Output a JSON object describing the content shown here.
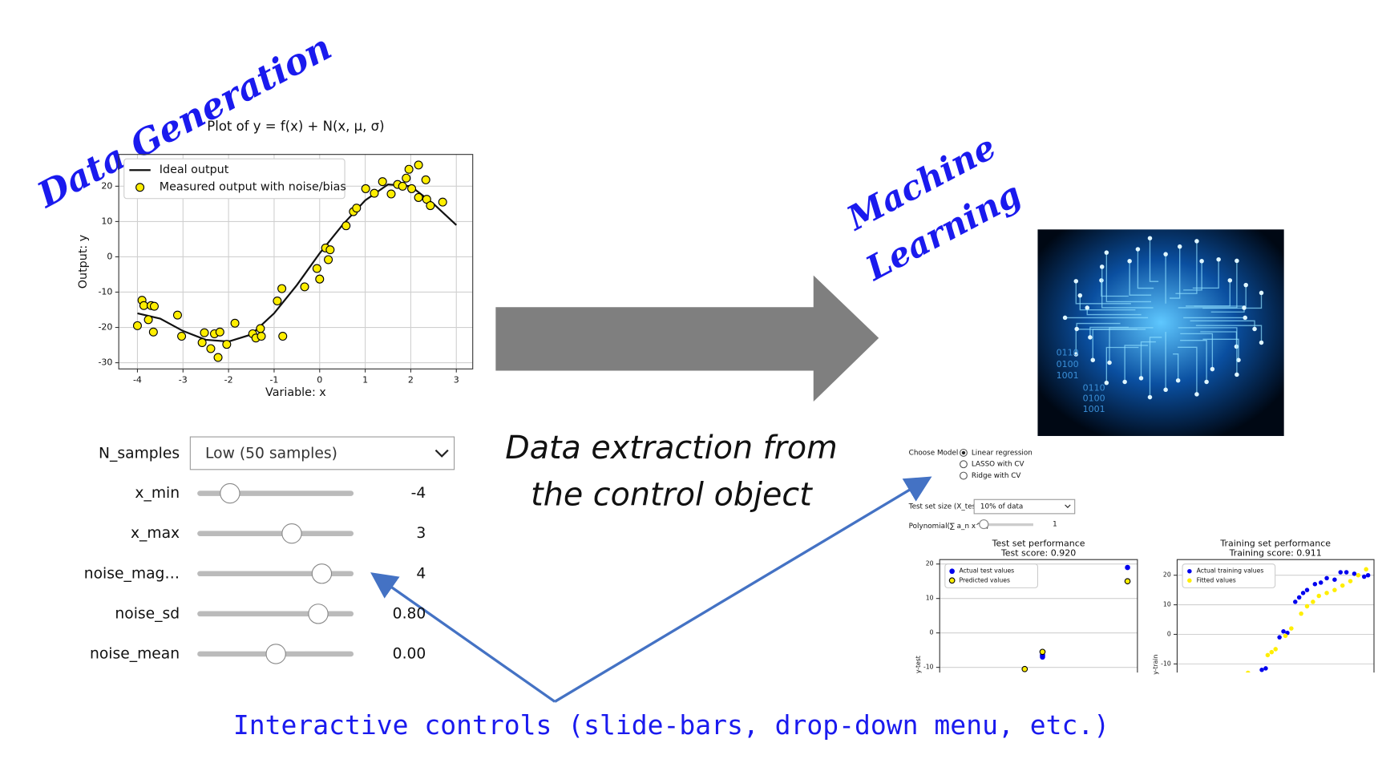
{
  "headings": {
    "data_generation": "Data Generation",
    "machine_learning": [
      "Machine",
      "Learning"
    ],
    "extraction": [
      "Data extraction from",
      "the control object"
    ],
    "interactive": "Interactive controls (slide-bars, drop-down menu, etc.)"
  },
  "controls": {
    "dropdown": {
      "label": "N_samples",
      "value": "Low (50 samples)"
    },
    "sliders": [
      {
        "label": "x_min",
        "value": "-4"
      },
      {
        "label": "x_max",
        "value": "3"
      },
      {
        "label": "noise_mag…",
        "value": "4"
      },
      {
        "label": "noise_sd",
        "value": "0.80"
      },
      {
        "label": "noise_mean",
        "value": "0.00"
      }
    ]
  },
  "ml_controls": {
    "model_label": "Choose Model",
    "models": [
      "Linear regression",
      "LASSO with CV",
      "Ridge with CV"
    ],
    "test_size_label": "Test set size (X_test)",
    "test_size_value": "10% of data",
    "poly_label": "Polynomial(∑ a_n x^n)",
    "poly_value": "1"
  },
  "brain_image": {
    "text": [
      "0110",
      "0100",
      "1001"
    ]
  },
  "chart_data": [
    {
      "type": "scatter",
      "title": "Plot of y = f(x) + N(x, μ, σ)",
      "x_label": "Variable: x",
      "y_label": "Output: y",
      "xlim": [
        -4.41,
        3.36
      ],
      "ylim": [
        -31.75,
        29
      ],
      "xticks": [
        -4,
        -3,
        -2,
        -1,
        0,
        1,
        2,
        3
      ],
      "yticks": [
        -30,
        -20,
        -10,
        0,
        10,
        20
      ],
      "grid": true,
      "legend": "upper left",
      "series": [
        {
          "name": "Ideal output",
          "type": "line",
          "color": "#111111",
          "x": [
            -4,
            -3.5,
            -3,
            -2.5,
            -2,
            -1.5,
            -1,
            -0.5,
            0,
            0.5,
            1,
            1.5,
            2,
            2.5,
            3
          ],
          "values": [
            -16,
            -17.5,
            -21,
            -23.5,
            -24,
            -22,
            -16,
            -8,
            1,
            9,
            16,
            20.5,
            20,
            15,
            9
          ]
        },
        {
          "name": "Measured output with noise/bias",
          "type": "scatter",
          "color": "#ffee00",
          "edgecolor": "#000000",
          "x": [
            -4,
            -3.9,
            -3.86,
            -3.76,
            -3.7,
            -3.63,
            -3.65,
            -3.12,
            -3.03,
            -2.58,
            -2.53,
            -2.39,
            -2.31,
            -2.23,
            -2.19,
            -2.04,
            -1.86,
            -1.47,
            -1.4,
            -1.28,
            -1.3,
            -0.93,
            -0.83,
            -0.81,
            -0.33,
            -0.06,
            0,
            0.13,
            0.19,
            0.23,
            0.58,
            0.74,
            0.81,
            1.01,
            1.2,
            1.38,
            1.57,
            1.71,
            1.82,
            1.9,
            1.96,
            2.02,
            2.17,
            2.17,
            2.33,
            2.35,
            2.43,
            2.7
          ],
          "values": [
            -19.5,
            -12.3,
            -13.8,
            -17.8,
            -13.8,
            -14,
            -21.3,
            -16.5,
            -22.5,
            -24.3,
            -21.5,
            -26,
            -21.8,
            -28.5,
            -21.3,
            -24.8,
            -18.8,
            -21.8,
            -23,
            -22.5,
            -20.3,
            -12.5,
            -9,
            -22.5,
            -8.5,
            -3.3,
            -6.3,
            2.5,
            -0.8,
            2,
            8.8,
            12.8,
            13.8,
            19.3,
            18,
            21.3,
            17.8,
            20.5,
            20,
            22.3,
            24.8,
            19.3,
            26,
            16.8,
            21.8,
            16.3,
            14.5,
            15.5
          ]
        }
      ]
    },
    {
      "type": "scatter",
      "title": "Test set performance",
      "subtitle": "Test score: 0.920",
      "y_label": "y-test",
      "xlim": [
        0,
        10
      ],
      "ylim": [
        -11.5,
        21.3
      ],
      "yticks": [
        -10,
        0,
        10,
        20
      ],
      "grid": true,
      "legend": "upper left",
      "series": [
        {
          "name": "Actual test values",
          "type": "scatter",
          "color": "#0000ee",
          "x": [
            9.5,
            5.2,
            5.2
          ],
          "values": [
            19,
            -6.5,
            -7
          ]
        },
        {
          "name": "Predicted values",
          "type": "scatter",
          "color": "#ffee00",
          "edgecolor": "#000000",
          "x": [
            9.5,
            5.2,
            4.3
          ],
          "values": [
            15,
            -5.5,
            -10.5
          ]
        }
      ]
    },
    {
      "type": "scatter",
      "title": "Training set performance",
      "subtitle": "Training score: 0.911",
      "y_label": "y-train",
      "xlim": [
        0,
        10
      ],
      "ylim": [
        -12.9,
        25.3
      ],
      "yticks": [
        -10,
        0,
        10,
        20
      ],
      "grid": true,
      "legend": "upper left",
      "series": [
        {
          "name": "Actual training values",
          "type": "scatter",
          "color": "#0000ee",
          "x": [
            4.3,
            4.5,
            5.2,
            5.4,
            5.6,
            6.0,
            6.2,
            6.4,
            6.6,
            7.0,
            7.3,
            7.6,
            8.0,
            8.3,
            8.6,
            9.0,
            9.5,
            9.7
          ],
          "values": [
            -12,
            -11.5,
            -1,
            1,
            0.5,
            11,
            12.5,
            14,
            15,
            17,
            17.5,
            19,
            18.5,
            21,
            21,
            20.5,
            19.5,
            20
          ]
        },
        {
          "name": "Fitted values",
          "type": "scatter",
          "color": "#ffee00",
          "x": [
            3.6,
            4.6,
            4.8,
            5.0,
            5.5,
            5.8,
            6.3,
            6.6,
            6.9,
            7.2,
            7.6,
            8.0,
            8.4,
            8.8,
            9.2,
            9.6
          ],
          "values": [
            -13,
            -7,
            -6,
            -5,
            -0.5,
            2,
            7,
            9.5,
            11,
            13,
            14,
            15,
            16.5,
            18,
            20,
            22
          ]
        }
      ]
    }
  ]
}
